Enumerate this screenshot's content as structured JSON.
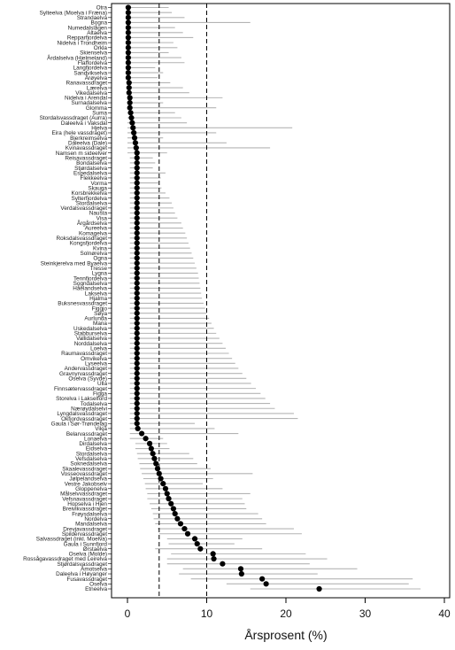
{
  "chart_data": {
    "type": "dot-range",
    "xlabel": "Årsprosent (%)",
    "xlim": [
      0,
      40
    ],
    "xticks": [
      0,
      10,
      20,
      30,
      40
    ],
    "reference_lines": [
      4,
      10
    ],
    "colors": {
      "point": "#000000",
      "range": "#b4b4b4",
      "ref": "#000000"
    },
    "rivers": [
      {
        "name": "Otra",
        "value": 0.1,
        "low": 0,
        "high": 5.2
      },
      {
        "name": "Sylteelva (Moelva i Fræna)",
        "value": 0.1,
        "low": 0,
        "high": 5.6
      },
      {
        "name": "Strandaelva",
        "value": 0.1,
        "low": 0,
        "high": 7.2
      },
      {
        "name": "Bogna",
        "value": 0.1,
        "low": 0,
        "high": 15.5
      },
      {
        "name": "Numedalslågen",
        "value": 0.1,
        "low": 0,
        "high": 6.0
      },
      {
        "name": "Altaelva",
        "value": 0.1,
        "low": 0,
        "high": 7.0
      },
      {
        "name": "Repparfjordelva",
        "value": 0.1,
        "low": 0,
        "high": 8.3
      },
      {
        "name": "Nidelva i Trondheim",
        "value": 0.1,
        "low": 0,
        "high": 5.8
      },
      {
        "name": "Orkla",
        "value": 0.1,
        "low": 0,
        "high": 6.3
      },
      {
        "name": "Skienselva",
        "value": 0.1,
        "low": 0,
        "high": 5.2
      },
      {
        "name": "Årdalselva (Hjelmeland)",
        "value": 0.1,
        "low": 0,
        "high": 6.8
      },
      {
        "name": "Flaffordelva",
        "value": 0.1,
        "low": 0,
        "high": 7.2
      },
      {
        "name": "Langfjordelva",
        "value": 0.1,
        "low": 0,
        "high": 3.5
      },
      {
        "name": "Sandvikselva",
        "value": 0.1,
        "low": 0,
        "high": 4.5
      },
      {
        "name": "Årøyelva",
        "value": 0.1,
        "low": 0,
        "high": 3.8
      },
      {
        "name": "Ranavassdraget",
        "value": 0.2,
        "low": 0,
        "high": 5.4
      },
      {
        "name": "Lærelva",
        "value": 0.2,
        "low": 0,
        "high": 7.0
      },
      {
        "name": "Vikedalselva",
        "value": 0.2,
        "low": 0,
        "high": 7.8
      },
      {
        "name": "Nidelva i Arendal",
        "value": 0.3,
        "low": 0,
        "high": 12.0
      },
      {
        "name": "Surnadalselva",
        "value": 0.3,
        "low": 0,
        "high": 4.5
      },
      {
        "name": "Glomma",
        "value": 0.3,
        "low": 0,
        "high": 11.2
      },
      {
        "name": "Suma",
        "value": 0.4,
        "low": 0,
        "high": 6.0
      },
      {
        "name": "Stordalsvassdraget (Aurra)",
        "value": 0.5,
        "low": 0,
        "high": 6.8
      },
      {
        "name": "Daleelva i Vaksdal",
        "value": 0.6,
        "low": 0,
        "high": 7.5
      },
      {
        "name": "Hjelva",
        "value": 0.7,
        "low": 0,
        "high": 20.8
      },
      {
        "name": "Eira (hele vassdraget)",
        "value": 0.8,
        "low": 0,
        "high": 11.2
      },
      {
        "name": "Bjerkreimselva",
        "value": 0.9,
        "low": 0,
        "high": 4.5
      },
      {
        "name": "Daleelva (Dale)",
        "value": 1.0,
        "low": 0,
        "high": 12.5
      },
      {
        "name": "Kvinavassdraget",
        "value": 1.1,
        "low": 0,
        "high": 18.0
      },
      {
        "name": "Namsen m sideelver",
        "value": 1.2,
        "low": 0,
        "high": 5.0
      },
      {
        "name": "Reisavassdraget",
        "value": 1.2,
        "low": 0.3,
        "high": 3.2
      },
      {
        "name": "Bondalselva",
        "value": 1.2,
        "low": 0.3,
        "high": 3.5
      },
      {
        "name": "Stjørdalselva",
        "value": 1.2,
        "low": 0.3,
        "high": 3.2
      },
      {
        "name": "Espedalselva",
        "value": 1.2,
        "low": 0.3,
        "high": 4.8
      },
      {
        "name": "Flekkeelva",
        "value": 1.2,
        "low": 0.3,
        "high": 4.2
      },
      {
        "name": "Vorma",
        "value": 1.2,
        "low": 0.3,
        "high": 3.9
      },
      {
        "name": "Skauga",
        "value": 1.2,
        "low": 0.3,
        "high": 4.3
      },
      {
        "name": "Korsbrekkelva",
        "value": 1.2,
        "low": 0.3,
        "high": 4.8
      },
      {
        "name": "Sylterfjordelva",
        "value": 1.2,
        "low": 0.3,
        "high": 5.3
      },
      {
        "name": "Stordalselva",
        "value": 1.2,
        "low": 0.3,
        "high": 5.6
      },
      {
        "name": "Verdalsvassdraget",
        "value": 1.2,
        "low": 0.3,
        "high": 5.8
      },
      {
        "name": "Nausta",
        "value": 1.2,
        "low": 0.3,
        "high": 6.0
      },
      {
        "name": "Visa",
        "value": 1.2,
        "low": 0.3,
        "high": 6.3
      },
      {
        "name": "Årgårdselva",
        "value": 1.2,
        "low": 0.3,
        "high": 6.8
      },
      {
        "name": "Aureelva",
        "value": 1.2,
        "low": 0.3,
        "high": 7.0
      },
      {
        "name": "Komagelva",
        "value": 1.2,
        "low": 0.3,
        "high": 7.3
      },
      {
        "name": "Roksdalsvassdraget",
        "value": 1.2,
        "low": 0.3,
        "high": 7.5
      },
      {
        "name": "Kongsfjordelva",
        "value": 1.2,
        "low": 0.3,
        "high": 7.7
      },
      {
        "name": "Kvina",
        "value": 1.2,
        "low": 0.3,
        "high": 7.9
      },
      {
        "name": "Solnørelva",
        "value": 1.2,
        "low": 0.3,
        "high": 8.1
      },
      {
        "name": "Ogna",
        "value": 1.2,
        "low": 0.3,
        "high": 8.3
      },
      {
        "name": "Steinkjerelva med Byaelva",
        "value": 1.2,
        "low": 0.3,
        "high": 8.5
      },
      {
        "name": "Tresse",
        "value": 1.2,
        "low": 0.3,
        "high": 8.7
      },
      {
        "name": "Lygna",
        "value": 1.2,
        "low": 0.3,
        "high": 8.9
      },
      {
        "name": "Tennfjordelva",
        "value": 1.2,
        "low": 0.3,
        "high": 9.0
      },
      {
        "name": "Sogndalselva",
        "value": 1.2,
        "low": 0.3,
        "high": 9.1
      },
      {
        "name": "Håelandselva",
        "value": 1.2,
        "low": 0.3,
        "high": 9.2
      },
      {
        "name": "Lakselva",
        "value": 1.2,
        "low": 0.3,
        "high": 9.3
      },
      {
        "name": "Hjalma",
        "value": 1.2,
        "low": 0.3,
        "high": 9.4
      },
      {
        "name": "Buksnesvassdraget",
        "value": 1.2,
        "low": 0.3,
        "high": 9.6
      },
      {
        "name": "Figgjo",
        "value": 1.2,
        "low": 0.3,
        "high": 9.8
      },
      {
        "name": "Søya",
        "value": 1.2,
        "low": 0.3,
        "high": 10.0
      },
      {
        "name": "Aurlunda",
        "value": 1.2,
        "low": 0.3,
        "high": 10.3
      },
      {
        "name": "Mana",
        "value": 1.2,
        "low": 0.3,
        "high": 10.6
      },
      {
        "name": "Uskedalselva",
        "value": 1.2,
        "low": 0.3,
        "high": 10.9
      },
      {
        "name": "Stabburselva",
        "value": 1.2,
        "low": 0.3,
        "high": 11.2
      },
      {
        "name": "Vallidalselva",
        "value": 1.2,
        "low": 0.3,
        "high": 11.6
      },
      {
        "name": "Norddalselva",
        "value": 1.2,
        "low": 0.3,
        "high": 12.0
      },
      {
        "name": "Loelva",
        "value": 1.2,
        "low": 0.3,
        "high": 12.4
      },
      {
        "name": "Raumavassdraget",
        "value": 1.2,
        "low": 0.3,
        "high": 12.8
      },
      {
        "name": "Omvikelva",
        "value": 1.2,
        "low": 0.3,
        "high": 13.2
      },
      {
        "name": "Lyseelva",
        "value": 1.2,
        "low": 0.3,
        "high": 13.6
      },
      {
        "name": "Andervassdraget",
        "value": 1.2,
        "low": 0.3,
        "high": 14.0
      },
      {
        "name": "Gravnyrvassdraget",
        "value": 1.2,
        "low": 0.3,
        "high": 14.5
      },
      {
        "name": "Oselva (Syvde)",
        "value": 1.2,
        "low": 0.3,
        "high": 15.0
      },
      {
        "name": "Ulla",
        "value": 1.2,
        "low": 0.3,
        "high": 15.6
      },
      {
        "name": "Finnsætervassdraget",
        "value": 1.2,
        "low": 0.3,
        "high": 16.2
      },
      {
        "name": "Figga",
        "value": 1.2,
        "low": 0.3,
        "high": 16.8
      },
      {
        "name": "Storelva i Lakselford",
        "value": 1.2,
        "low": 0.3,
        "high": 17.4
      },
      {
        "name": "Todalselva",
        "value": 1.2,
        "low": 0.3,
        "high": 18.0
      },
      {
        "name": "Nærøydalselvi",
        "value": 1.2,
        "low": 0.3,
        "high": 18.6
      },
      {
        "name": "Lyngdalsvassdraget",
        "value": 1.2,
        "low": 0.3,
        "high": 21.0
      },
      {
        "name": "Okfjordvassdraget",
        "value": 1.2,
        "low": 0.3,
        "high": 21.5
      },
      {
        "name": "Gaula i Sør-Trøndelag",
        "value": 1.2,
        "low": 0.3,
        "high": 8.5
      },
      {
        "name": "Vikja",
        "value": 1.3,
        "low": 0.3,
        "high": 11.0
      },
      {
        "name": "Belarvassdraget",
        "value": 1.8,
        "low": 0.3,
        "high": 14.0
      },
      {
        "name": "Lonaelva",
        "value": 2.3,
        "low": 0.3,
        "high": 4.5
      },
      {
        "name": "Dirdalselva",
        "value": 2.8,
        "low": 1.0,
        "high": 5.0
      },
      {
        "name": "Eidselva",
        "value": 3.0,
        "low": 1.0,
        "high": 5.3
      },
      {
        "name": "Stordalselva",
        "value": 3.2,
        "low": 1.2,
        "high": 7.8
      },
      {
        "name": "Vefsdalselva",
        "value": 3.4,
        "low": 1.3,
        "high": 8.3
      },
      {
        "name": "Soknedalselva",
        "value": 3.6,
        "low": 1.5,
        "high": 8.8
      },
      {
        "name": "Skaalevassdraget",
        "value": 3.8,
        "low": 1.6,
        "high": 10.5
      },
      {
        "name": "Vosseovassdraget",
        "value": 4.0,
        "low": 1.8,
        "high": 15.8
      },
      {
        "name": "Jølpelandselva",
        "value": 4.2,
        "low": 2.0,
        "high": 10.8
      },
      {
        "name": "Vestre Jakobselv",
        "value": 4.5,
        "low": 2.2,
        "high": 9.5
      },
      {
        "name": "Gloppenelva",
        "value": 4.8,
        "low": 2.3,
        "high": 12.0
      },
      {
        "name": "Målselvvassdraget",
        "value": 5.0,
        "low": 2.5,
        "high": 15.5
      },
      {
        "name": "Vefsnavassdraget",
        "value": 5.2,
        "low": 2.5,
        "high": 14.5
      },
      {
        "name": "Hopselva i Hjen",
        "value": 5.5,
        "low": 2.8,
        "high": 14.8
      },
      {
        "name": "Breivikvassdraget",
        "value": 5.8,
        "low": 3.0,
        "high": 15.0
      },
      {
        "name": "Frøysdalselva",
        "value": 6.0,
        "low": 3.2,
        "high": 16.5
      },
      {
        "name": "Nordelva",
        "value": 6.3,
        "low": 3.3,
        "high": 17.0
      },
      {
        "name": "Mandalselva",
        "value": 6.7,
        "low": 3.5,
        "high": 17.5
      },
      {
        "name": "Drevjavassdraget",
        "value": 7.2,
        "low": 3.8,
        "high": 21.0
      },
      {
        "name": "Spildervassdraget",
        "value": 7.6,
        "low": 4.0,
        "high": 22.0
      },
      {
        "name": "Salvassdraget (inkl. Moelva)",
        "value": 8.5,
        "low": 5.0,
        "high": 14.5
      },
      {
        "name": "Gaula i Sunnfjord",
        "value": 8.8,
        "low": 5.2,
        "high": 13.5
      },
      {
        "name": "Ørstaelva",
        "value": 9.2,
        "low": 3.5,
        "high": 17.0
      },
      {
        "name": "Oselva (Molde)",
        "value": 10.8,
        "low": 5.5,
        "high": 22.5
      },
      {
        "name": "Rossågavassdraget med Leirelva",
        "value": 10.9,
        "low": 5.0,
        "high": 25.2
      },
      {
        "name": "Stjørdalsvassdraget",
        "value": 12.0,
        "low": 5.0,
        "high": 23.0
      },
      {
        "name": "Åmotselva",
        "value": 14.3,
        "low": 7.0,
        "high": 29.0
      },
      {
        "name": "Daleelva i Høyanger",
        "value": 14.4,
        "low": 6.5,
        "high": 24.0
      },
      {
        "name": "Fusavassdraget",
        "value": 17.0,
        "low": 8.0,
        "high": 36.0
      },
      {
        "name": "Oselva",
        "value": 17.5,
        "low": 12.5,
        "high": 35.5
      },
      {
        "name": "Etneelva",
        "value": 24.2,
        "low": 15.5,
        "high": 37.0
      }
    ]
  }
}
